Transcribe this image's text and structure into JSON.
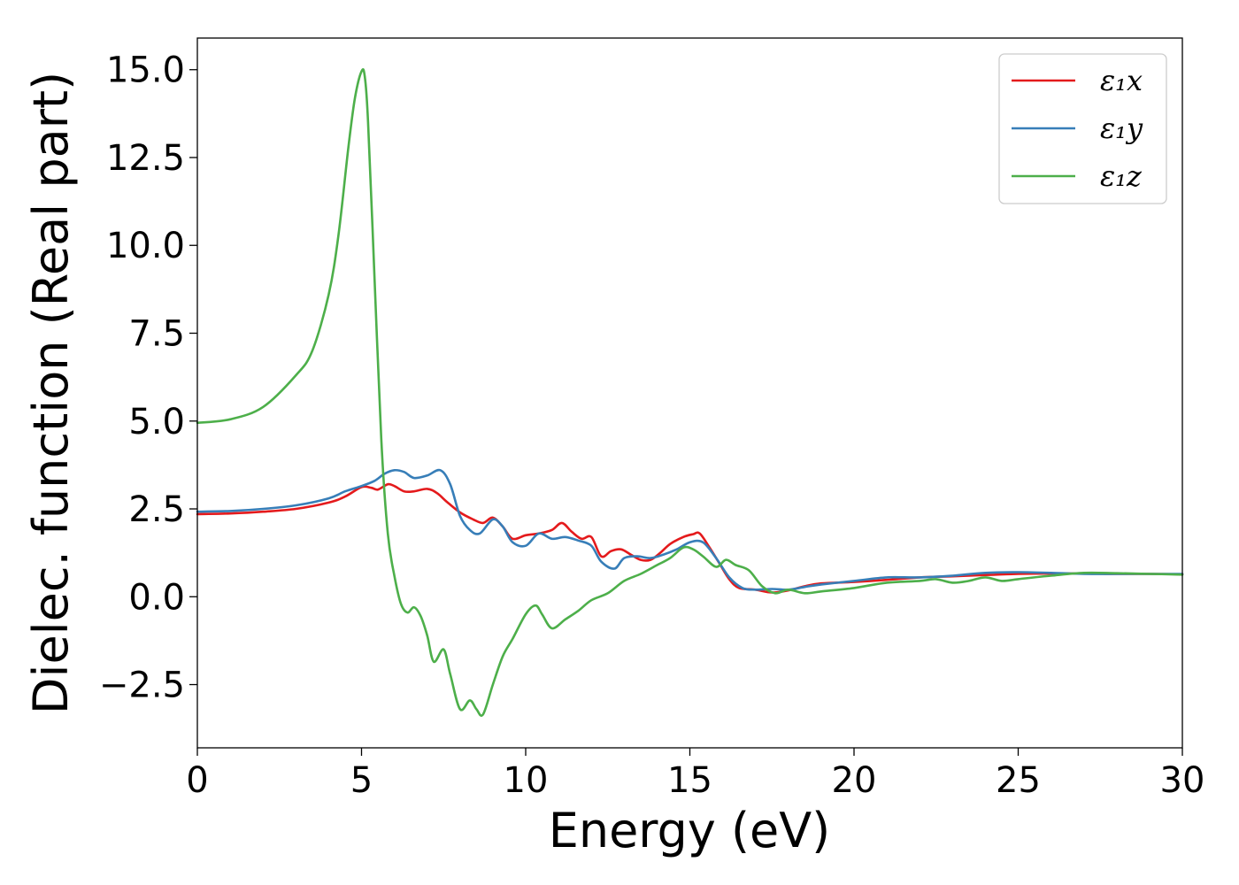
{
  "chart_data": {
    "type": "line",
    "title": "",
    "xlabel": "Energy (eV)",
    "ylabel": "Dielec. function (Real part)",
    "xlim": [
      0,
      30
    ],
    "ylim": [
      -4.3,
      15.9
    ],
    "xticks": [
      0,
      5,
      10,
      15,
      20,
      25,
      30
    ],
    "yticks": [
      -2.5,
      0.0,
      2.5,
      5.0,
      7.5,
      10.0,
      12.5,
      15.0
    ],
    "xtick_labels": [
      "0",
      "5",
      "10",
      "15",
      "20",
      "25",
      "30"
    ],
    "ytick_labels": [
      "−2.5",
      "0.0",
      "2.5",
      "5.0",
      "7.5",
      "10.0",
      "12.5",
      "15.0"
    ],
    "grid": false,
    "legend_position": "top-right",
    "series": [
      {
        "name": "ε₁x",
        "color": "#e41a1c",
        "x": [
          0,
          1,
          2,
          3,
          4,
          4.5,
          5,
          5.3,
          5.5,
          5.8,
          6.0,
          6.3,
          6.6,
          7.0,
          7.3,
          7.6,
          8.0,
          8.4,
          8.7,
          9.0,
          9.3,
          9.6,
          10.0,
          10.4,
          10.8,
          11.1,
          11.4,
          11.7,
          12.0,
          12.3,
          12.6,
          12.9,
          13.2,
          13.5,
          13.8,
          14.1,
          14.4,
          14.8,
          15.1,
          15.3,
          15.6,
          15.9,
          16.2,
          16.5,
          17.0,
          17.5,
          18.0,
          18.5,
          19.0,
          20.0,
          21.0,
          22.0,
          23.0,
          24.0,
          25.0,
          26.0,
          27.0,
          28.0,
          29.0,
          30.0
        ],
        "y": [
          2.35,
          2.37,
          2.42,
          2.5,
          2.68,
          2.85,
          3.12,
          3.1,
          3.05,
          3.2,
          3.15,
          3.0,
          3.0,
          3.07,
          2.95,
          2.7,
          2.4,
          2.2,
          2.1,
          2.25,
          2.0,
          1.65,
          1.75,
          1.8,
          1.9,
          2.1,
          1.85,
          1.65,
          1.7,
          1.15,
          1.3,
          1.35,
          1.2,
          1.05,
          1.05,
          1.25,
          1.5,
          1.7,
          1.78,
          1.8,
          1.4,
          0.95,
          0.5,
          0.25,
          0.2,
          0.12,
          0.18,
          0.3,
          0.38,
          0.42,
          0.48,
          0.55,
          0.58,
          0.62,
          0.65,
          0.66,
          0.66,
          0.65,
          0.65,
          0.64
        ]
      },
      {
        "name": "ε₁y",
        "color": "#377eb8",
        "x": [
          0,
          1,
          2,
          3,
          4,
          4.5,
          5,
          5.4,
          5.7,
          6.0,
          6.3,
          6.6,
          7.0,
          7.4,
          7.7,
          8.0,
          8.3,
          8.6,
          9.0,
          9.3,
          9.6,
          10.0,
          10.4,
          10.8,
          11.2,
          11.6,
          12.0,
          12.3,
          12.7,
          13.0,
          13.4,
          13.8,
          14.2,
          14.6,
          15.0,
          15.4,
          15.8,
          16.2,
          16.6,
          17.0,
          17.5,
          18.0,
          18.5,
          19.0,
          20.0,
          21.0,
          22.0,
          23.0,
          24.0,
          25.0,
          26.0,
          27.0,
          28.0,
          29.0,
          30.0
        ],
        "y": [
          2.42,
          2.44,
          2.5,
          2.6,
          2.8,
          3.0,
          3.15,
          3.3,
          3.5,
          3.6,
          3.55,
          3.38,
          3.45,
          3.6,
          3.2,
          2.3,
          1.9,
          1.8,
          2.2,
          2.0,
          1.55,
          1.45,
          1.8,
          1.65,
          1.7,
          1.6,
          1.45,
          1.0,
          0.8,
          1.1,
          1.15,
          1.1,
          1.2,
          1.35,
          1.55,
          1.55,
          1.1,
          0.55,
          0.25,
          0.2,
          0.22,
          0.2,
          0.28,
          0.35,
          0.45,
          0.55,
          0.55,
          0.6,
          0.68,
          0.7,
          0.68,
          0.65,
          0.65,
          0.65,
          0.65
        ]
      },
      {
        "name": "ε₁z",
        "color": "#4daf4a",
        "x": [
          0,
          1,
          2,
          3,
          3.5,
          4.0,
          4.3,
          4.6,
          4.8,
          5.0,
          5.1,
          5.2,
          5.4,
          5.6,
          5.8,
          6.0,
          6.2,
          6.4,
          6.6,
          6.8,
          7.0,
          7.2,
          7.5,
          7.7,
          8.0,
          8.3,
          8.5,
          8.7,
          9.0,
          9.3,
          9.6,
          10.0,
          10.3,
          10.5,
          10.8,
          11.2,
          11.6,
          12.0,
          12.5,
          13.0,
          13.5,
          14.0,
          14.4,
          14.8,
          15.1,
          15.4,
          15.8,
          16.1,
          16.4,
          16.8,
          17.2,
          17.6,
          18.0,
          18.5,
          19.0,
          20.0,
          21.0,
          22.0,
          22.5,
          23.0,
          23.5,
          24.0,
          24.5,
          25.0,
          26.0,
          27.0,
          28.0,
          29.0,
          30.0
        ],
        "y": [
          4.95,
          5.05,
          5.4,
          6.3,
          7.0,
          8.6,
          10.3,
          12.8,
          14.2,
          14.95,
          14.8,
          13.5,
          9.0,
          4.5,
          1.8,
          0.6,
          -0.2,
          -0.45,
          -0.3,
          -0.55,
          -1.1,
          -1.85,
          -1.5,
          -2.2,
          -3.2,
          -2.95,
          -3.2,
          -3.35,
          -2.5,
          -1.7,
          -1.2,
          -0.5,
          -0.25,
          -0.5,
          -0.9,
          -0.65,
          -0.4,
          -0.1,
          0.1,
          0.45,
          0.65,
          0.9,
          1.1,
          1.4,
          1.35,
          1.15,
          0.85,
          1.05,
          0.9,
          0.75,
          0.3,
          0.1,
          0.2,
          0.1,
          0.15,
          0.25,
          0.4,
          0.45,
          0.5,
          0.4,
          0.45,
          0.55,
          0.45,
          0.5,
          0.6,
          0.68,
          0.67,
          0.65,
          0.63
        ]
      }
    ]
  }
}
